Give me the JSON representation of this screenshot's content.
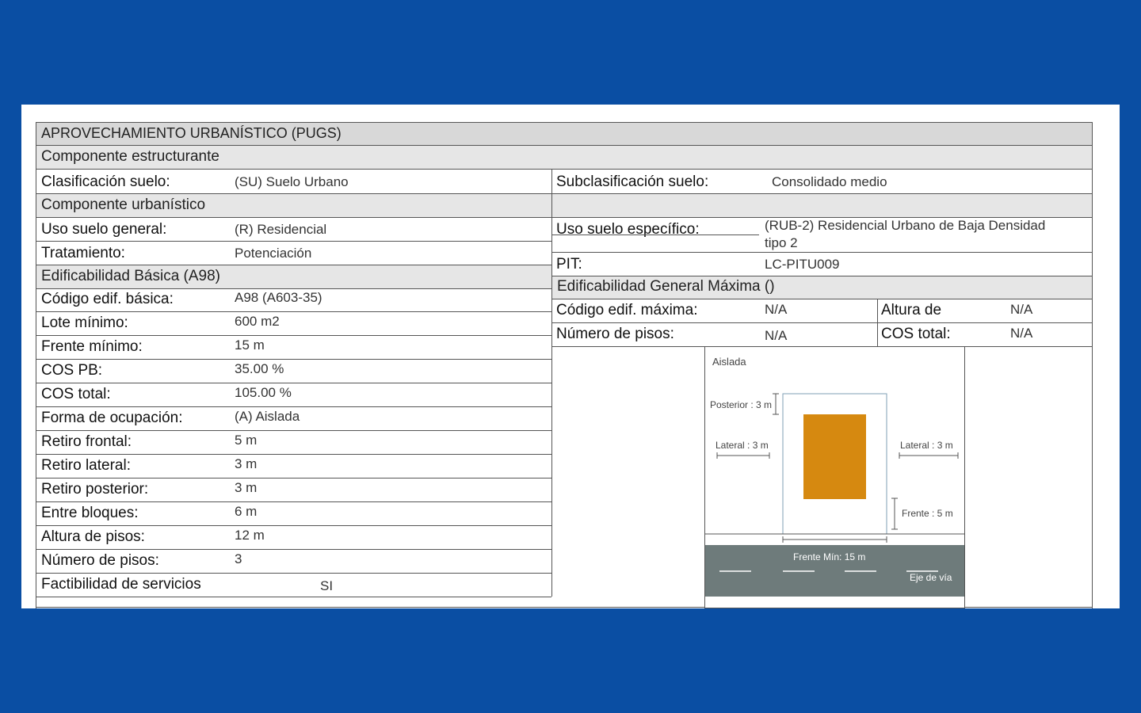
{
  "header": "APROVECHAMIENTO URBANÍSTICO (PUGS)",
  "sections": {
    "estructurante": "Componente  estructurante",
    "urbanistico": "Componente  urbanístico",
    "basica": "Edificabilidad Básica (A98)",
    "maxima": "Edificabilidad General Máxima ()"
  },
  "clasificacion": {
    "label": "Clasificación suelo:",
    "value": "(SU) Suelo Urbano"
  },
  "subclasificacion": {
    "label": "Subclasificación suelo:",
    "value": "Consolidado medio"
  },
  "uso_general": {
    "label": "Uso suelo general:",
    "value": "(R) Residencial"
  },
  "uso_especifico": {
    "label": "Uso suelo específico:",
    "value_line1": "(RUB-2) Residencial Urbano de Baja Densidad",
    "value_line2": "tipo 2"
  },
  "tratamiento": {
    "label": "Tratamiento:",
    "value": "Potenciación"
  },
  "pit": {
    "label": "PIT:",
    "value": "LC-PITU009"
  },
  "basica_rows": [
    {
      "label": "Código edif. básica:",
      "value": "A98 (A603-35)"
    },
    {
      "label": "Lote mínimo:",
      "value": "600 m2"
    },
    {
      "label": "Frente mínimo:",
      "value": "15 m"
    },
    {
      "label": "COS PB:",
      "value": "35.00 %"
    },
    {
      "label": "COS total:",
      "value": "105.00 %"
    },
    {
      "label": "Forma de ocupación:",
      "value": "(A) Aislada"
    },
    {
      "label": "Retiro frontal:",
      "value": "5 m"
    },
    {
      "label": "Retiro lateral:",
      "value": "3 m"
    },
    {
      "label": "Retiro posterior:",
      "value": "3 m"
    },
    {
      "label": "Entre bloques:",
      "value": "6 m"
    },
    {
      "label": "Altura de pisos:",
      "value": "12 m"
    },
    {
      "label": "Número de pisos:",
      "value": "3"
    },
    {
      "label": "Factibilidad de servicios",
      "value": "SI"
    }
  ],
  "maxima_rows": {
    "codigo": {
      "label": "Código edif. máxima:",
      "value": "N/A"
    },
    "altura": {
      "label": "Altura de",
      "value": "N/A"
    },
    "pisos": {
      "label": "Número de pisos:",
      "value": "N/A"
    },
    "cos": {
      "label": "COS total:",
      "value": "N/A"
    }
  },
  "diagram": {
    "title": "Aislada",
    "posterior": "Posterior : 3 m",
    "lateral_left": "Lateral : 3 m",
    "lateral_right": "Lateral : 3 m",
    "frente": "Frente : 5 m",
    "frente_min": "Frente Mín: 15 m",
    "eje": "Eje de vía",
    "colors": {
      "building": "#d68910",
      "road": "#6e7b7b"
    }
  }
}
